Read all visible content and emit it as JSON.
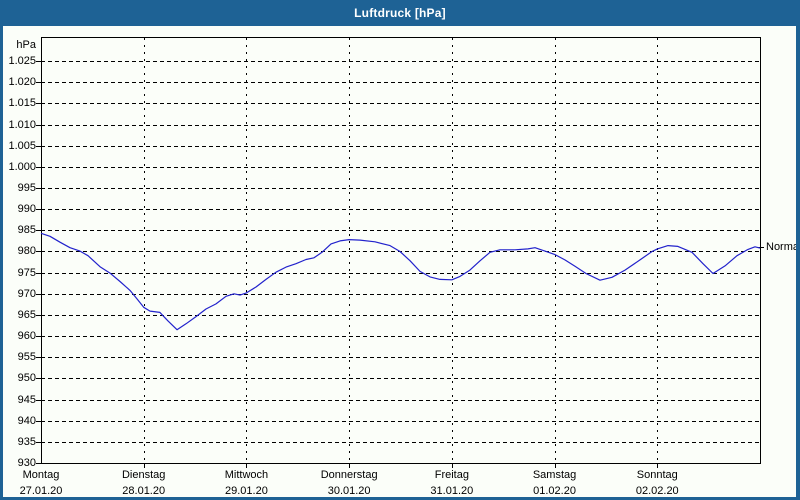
{
  "window": {
    "title": "Luftdruck [hPa]"
  },
  "colors": {
    "titlebar": "#1e6295",
    "frame": "#1e6295",
    "background": "#fbfef9",
    "grid": "#000000",
    "axis": "#000000",
    "line": "#2222cc",
    "title_text": "#ffffff",
    "label_text": "#000000"
  },
  "chart_data": {
    "type": "line",
    "title": "Luftdruck [hPa]",
    "unit_label": "hPa",
    "ylabel": "hPa",
    "ylim": [
      930,
      1030.7
    ],
    "grid": "dashed",
    "yticks": [
      {
        "value": 1025,
        "label": "1.025"
      },
      {
        "value": 1020,
        "label": "1.020"
      },
      {
        "value": 1015,
        "label": "1.015"
      },
      {
        "value": 1010,
        "label": "1.010"
      },
      {
        "value": 1005,
        "label": "1.005"
      },
      {
        "value": 1000,
        "label": "1.000"
      },
      {
        "value": 995,
        "label": "995"
      },
      {
        "value": 990,
        "label": "990"
      },
      {
        "value": 985,
        "label": "985"
      },
      {
        "value": 980,
        "label": "980"
      },
      {
        "value": 975,
        "label": "975"
      },
      {
        "value": 970,
        "label": "970"
      },
      {
        "value": 965,
        "label": "965"
      },
      {
        "value": 960,
        "label": "960"
      },
      {
        "value": 955,
        "label": "955"
      },
      {
        "value": 950,
        "label": "950"
      },
      {
        "value": 945,
        "label": "945"
      },
      {
        "value": 940,
        "label": "940"
      },
      {
        "value": 935,
        "label": "935"
      },
      {
        "value": 930,
        "label": "930"
      }
    ],
    "x_days": [
      {
        "name": "Montag",
        "date": "27.01.20"
      },
      {
        "name": "Dienstag",
        "date": "28.01.20"
      },
      {
        "name": "Mittwoch",
        "date": "29.01.20"
      },
      {
        "name": "Donnerstag",
        "date": "30.01.20"
      },
      {
        "name": "Freitag",
        "date": "31.01.20"
      },
      {
        "name": "Samstag",
        "date": "01.02.20"
      },
      {
        "name": "Sonntag",
        "date": "02.02.20"
      }
    ],
    "series": [
      {
        "name": "Luftdruck",
        "points": [
          [
            0.0,
            984.3
          ],
          [
            0.088,
            983.6
          ],
          [
            0.185,
            982.2
          ],
          [
            0.282,
            980.9
          ],
          [
            0.38,
            980.1
          ],
          [
            0.458,
            979.0
          ],
          [
            0.574,
            976.4
          ],
          [
            0.672,
            974.9
          ],
          [
            0.769,
            972.9
          ],
          [
            0.866,
            970.8
          ],
          [
            0.935,
            968.8
          ],
          [
            1.0,
            966.8
          ],
          [
            1.061,
            965.9
          ],
          [
            1.158,
            965.6
          ],
          [
            1.236,
            963.6
          ],
          [
            1.324,
            961.5
          ],
          [
            1.412,
            962.9
          ],
          [
            1.509,
            964.6
          ],
          [
            1.606,
            966.4
          ],
          [
            1.704,
            967.6
          ],
          [
            1.801,
            969.4
          ],
          [
            1.879,
            970.0
          ],
          [
            1.937,
            969.7
          ],
          [
            2.0,
            970.2
          ],
          [
            2.093,
            971.6
          ],
          [
            2.191,
            973.4
          ],
          [
            2.288,
            975.1
          ],
          [
            2.385,
            976.3
          ],
          [
            2.483,
            977.1
          ],
          [
            2.58,
            978.1
          ],
          [
            2.658,
            978.5
          ],
          [
            2.736,
            979.8
          ],
          [
            2.823,
            981.8
          ],
          [
            2.911,
            982.5
          ],
          [
            3.0,
            982.8
          ],
          [
            3.106,
            982.7
          ],
          [
            3.252,
            982.3
          ],
          [
            3.398,
            981.4
          ],
          [
            3.495,
            980.0
          ],
          [
            3.593,
            977.8
          ],
          [
            3.69,
            975.3
          ],
          [
            3.787,
            974.0
          ],
          [
            3.885,
            973.4
          ],
          [
            4.0,
            973.3
          ],
          [
            4.079,
            974.1
          ],
          [
            4.176,
            975.6
          ],
          [
            4.274,
            977.8
          ],
          [
            4.371,
            979.8
          ],
          [
            4.468,
            980.4
          ],
          [
            4.614,
            980.4
          ],
          [
            4.741,
            980.6
          ],
          [
            4.809,
            980.9
          ],
          [
            4.906,
            980.1
          ],
          [
            5.0,
            979.3
          ],
          [
            5.101,
            978.0
          ],
          [
            5.199,
            976.5
          ],
          [
            5.306,
            974.8
          ],
          [
            5.442,
            973.2
          ],
          [
            5.559,
            973.9
          ],
          [
            5.686,
            975.6
          ],
          [
            5.832,
            978.0
          ],
          [
            5.949,
            980.0
          ],
          [
            6.0,
            980.6
          ],
          [
            6.104,
            981.4
          ],
          [
            6.201,
            981.2
          ],
          [
            6.338,
            979.8
          ],
          [
            6.445,
            977.1
          ],
          [
            6.542,
            974.8
          ],
          [
            6.659,
            976.6
          ],
          [
            6.776,
            979.0
          ],
          [
            6.883,
            980.5
          ],
          [
            6.951,
            981.1
          ],
          [
            7.0,
            980.8
          ]
        ]
      }
    ],
    "annotations": [
      {
        "label": "Normal",
        "value": 981
      }
    ]
  }
}
